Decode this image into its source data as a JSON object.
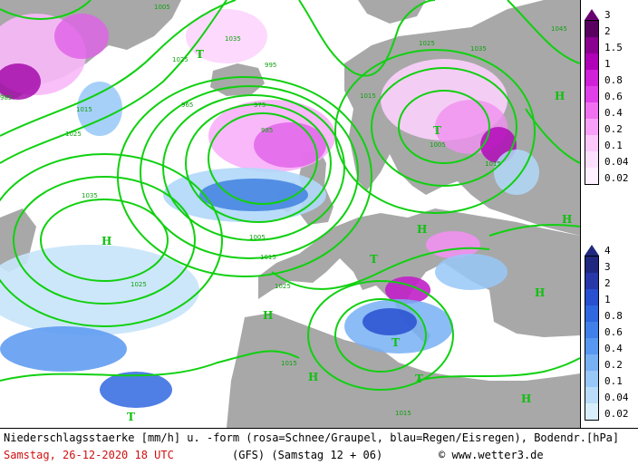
{
  "map": {
    "isobar_labels": [
      "1035",
      "1025",
      "995",
      "975",
      "965",
      "985",
      "1015",
      "1005",
      "1035",
      "1025",
      "1015",
      "1025",
      "1005",
      "1015",
      "1025",
      "1045",
      "1035",
      "1015",
      "1025",
      "1015",
      "985",
      "1005",
      "1015"
    ],
    "pressure_markers": [
      {
        "letter": "H"
      },
      {
        "letter": "H"
      },
      {
        "letter": "H"
      },
      {
        "letter": "H"
      },
      {
        "letter": "H"
      },
      {
        "letter": "H"
      },
      {
        "letter": "H"
      },
      {
        "letter": "H"
      },
      {
        "letter": "T"
      },
      {
        "letter": "T"
      },
      {
        "letter": "T"
      },
      {
        "letter": "T"
      },
      {
        "letter": "T"
      },
      {
        "letter": "T"
      }
    ],
    "colors": {
      "land": "#a8a8a8",
      "sea": "#ffffff",
      "isobar": "#10d010",
      "snow": "#e040e0",
      "snow_strong": "#a000a0",
      "rain": "#4080e0",
      "rain_light": "#b0d8f8"
    }
  },
  "snow_scale": {
    "labels": [
      "3",
      "2",
      "1.5",
      "1",
      "0.8",
      "0.6",
      "0.4",
      "0.2",
      "0.1",
      "0.04",
      "0.02"
    ],
    "colors": [
      "#5a0060",
      "#8a0090",
      "#b000b8",
      "#d020d8",
      "#e040e8",
      "#f070f0",
      "#f8a0f8",
      "#fcc8fc",
      "#fde0fd",
      "#fff0ff"
    ]
  },
  "rain_scale": {
    "labels": [
      "4",
      "3",
      "2",
      "1",
      "0.8",
      "0.6",
      "0.4",
      "0.2",
      "0.1",
      "0.04",
      "0.02"
    ],
    "colors": [
      "#202880",
      "#2838a8",
      "#2850d0",
      "#3068e0",
      "#4080e8",
      "#5898f0",
      "#78b0f4",
      "#98c8f8",
      "#b8dcfa",
      "#d8eefc"
    ]
  },
  "footer": {
    "legend_text": "Niederschlagsstaerke [mm/h] u. -form (rosa=Schnee/Graupel, blau=Regen/Eisregen), Bodendr.[hPa]",
    "date_text": "Samstag, 26-12-2020  18 UTC",
    "model_text": "(GFS)  (Samstag 12 + 06)",
    "copyright": "www.wetter3.de"
  }
}
